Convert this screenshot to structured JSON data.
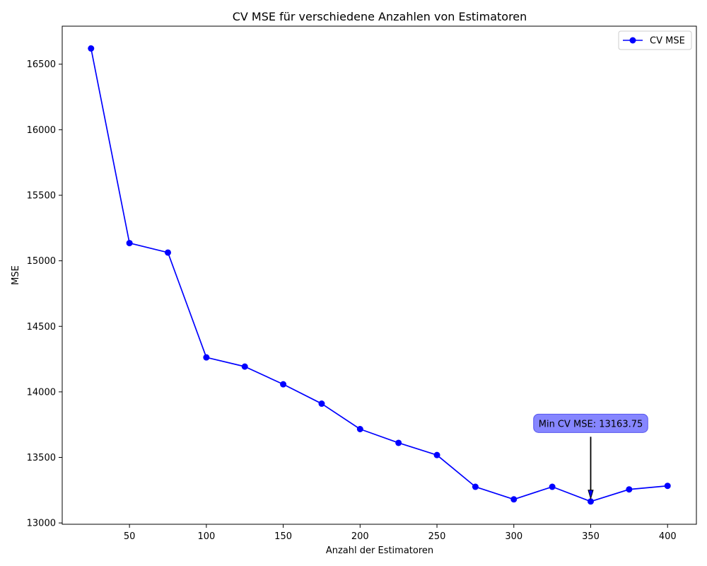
{
  "chart_data": {
    "type": "line",
    "title": "CV MSE für verschiedene Anzahlen von Estimatoren",
    "xlabel": "Anzahl der Estimatoren",
    "ylabel": "MSE",
    "xlim": [
      6.25,
      418.75
    ],
    "ylim": [
      12990,
      16790
    ],
    "xticks": [
      50,
      100,
      150,
      200,
      250,
      300,
      350,
      400
    ],
    "yticks": [
      13000,
      13500,
      14000,
      14500,
      15000,
      15500,
      16000,
      16500
    ],
    "grid": false,
    "legend_position": "top-right",
    "series": [
      {
        "name": "CV MSE",
        "color": "#0000ff",
        "marker": "circle",
        "x": [
          25,
          50,
          75,
          100,
          125,
          150,
          175,
          200,
          225,
          250,
          275,
          300,
          325,
          350,
          375,
          400
        ],
        "y": [
          16620,
          15135,
          15063,
          14263,
          14193,
          14058,
          13910,
          13716,
          13611,
          13518,
          13276,
          13180,
          13276,
          13163.75,
          13256,
          13283
        ]
      }
    ],
    "annotations": [
      {
        "text": "Min CV MSE: 13163.75",
        "x": 350,
        "y": 13163.75,
        "text_x": 350,
        "text_y": 13760,
        "box_color": "#8080ff",
        "arrow": true
      }
    ]
  }
}
